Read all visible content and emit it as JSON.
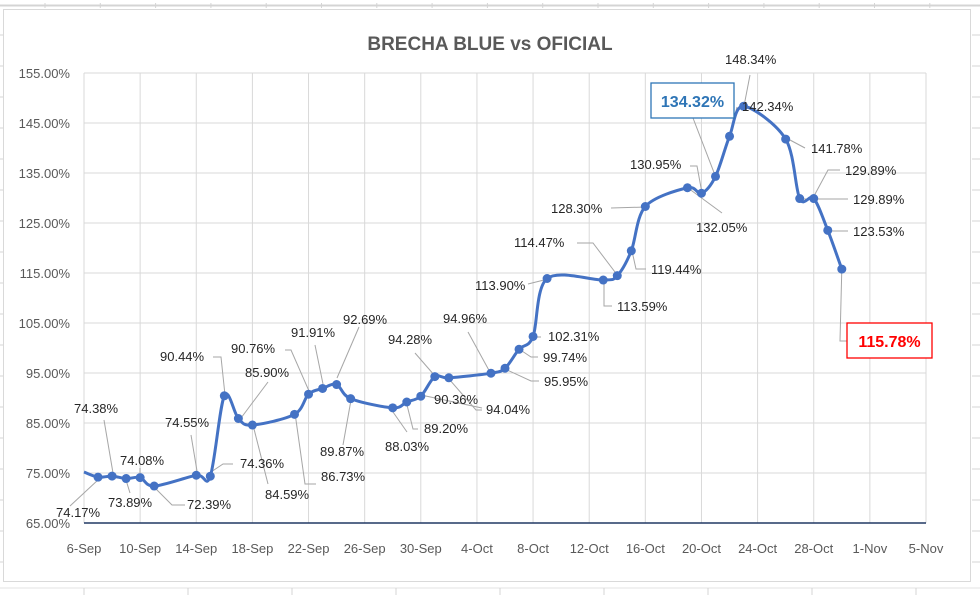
{
  "chart_data": {
    "type": "line",
    "title": "BRECHA BLUE vs OFICIAL",
    "xlabel": "",
    "ylabel": "",
    "ylim": [
      0.65,
      1.55
    ],
    "y_ticks": [
      "65.00%",
      "75.00%",
      "85.00%",
      "95.00%",
      "105.00%",
      "115.00%",
      "125.00%",
      "135.00%",
      "145.00%",
      "155.00%"
    ],
    "x_ticks": [
      "6-Sep",
      "10-Sep",
      "14-Sep",
      "18-Sep",
      "22-Sep",
      "26-Sep",
      "30-Sep",
      "4-Oct",
      "8-Oct",
      "12-Oct",
      "16-Oct",
      "20-Oct",
      "24-Oct",
      "28-Oct",
      "1-Nov",
      "5-Nov"
    ],
    "grid": true,
    "legend": "none",
    "series": [
      {
        "name": "Brecha",
        "color": "#4472c4",
        "x": [
          "6-Sep",
          "7-Sep",
          "8-Sep",
          "9-Sep",
          "10-Sep",
          "11-Sep",
          "14-Sep",
          "15-Sep",
          "16-Sep",
          "17-Sep",
          "18-Sep",
          "21-Sep",
          "22-Sep",
          "23-Sep",
          "24-Sep",
          "25-Sep",
          "28-Sep",
          "29-Sep",
          "30-Sep",
          "1-Oct",
          "2-Oct",
          "5-Oct",
          "6-Oct",
          "7-Oct",
          "8-Oct",
          "9-Oct",
          "13-Oct",
          "14-Oct",
          "15-Oct",
          "16-Oct",
          "19-Oct",
          "20-Oct",
          "21-Oct",
          "22-Oct",
          "23-Oct",
          "26-Oct",
          "27-Oct",
          "28-Oct",
          "29-Oct",
          "30-Oct"
        ],
        "values": [
          75.2,
          74.17,
          74.38,
          73.89,
          74.08,
          72.39,
          74.55,
          74.36,
          90.44,
          85.9,
          84.59,
          86.73,
          90.76,
          91.91,
          92.69,
          89.87,
          88.03,
          89.2,
          90.36,
          94.28,
          94.04,
          94.96,
          95.95,
          99.74,
          102.31,
          113.9,
          113.59,
          114.47,
          119.44,
          128.3,
          132.05,
          130.95,
          134.32,
          142.34,
          148.34,
          141.78,
          129.89,
          129.89,
          123.53,
          115.78
        ],
        "labels": [
          "",
          "74.17%",
          "74.38%",
          "73.89%",
          "74.08%",
          "72.39%",
          "74.55%",
          "74.36%",
          "90.44%",
          "85.90%",
          "84.59%",
          "86.73%",
          "90.76%",
          "91.91%",
          "92.69%",
          "89.87%",
          "88.03%",
          "89.20%",
          "90.36%",
          "94.28%",
          "94.04%",
          "94.96%",
          "95.95%",
          "99.74%",
          "102.31%",
          "113.90%",
          "113.59%",
          "114.47%",
          "119.44%",
          "128.30%",
          "132.05%",
          "130.95%",
          "134.32%",
          "142.34%",
          "148.34%",
          "141.78%",
          "129.89%",
          "129.89%",
          "123.53%",
          "115.78%"
        ]
      }
    ],
    "annotations": [
      {
        "text": "134.32%",
        "style": "boxed",
        "color": "#2e75b6",
        "date": "21-Oct"
      },
      {
        "text": "115.78%",
        "style": "boxed",
        "color": "#ff0000",
        "date": "30-Oct"
      }
    ]
  },
  "colors": {
    "line": "#4472c4",
    "grid": "#d9d9d9",
    "axis": "#203864",
    "highlight_blue": "#2e75b6",
    "highlight_red": "#ff0000"
  }
}
